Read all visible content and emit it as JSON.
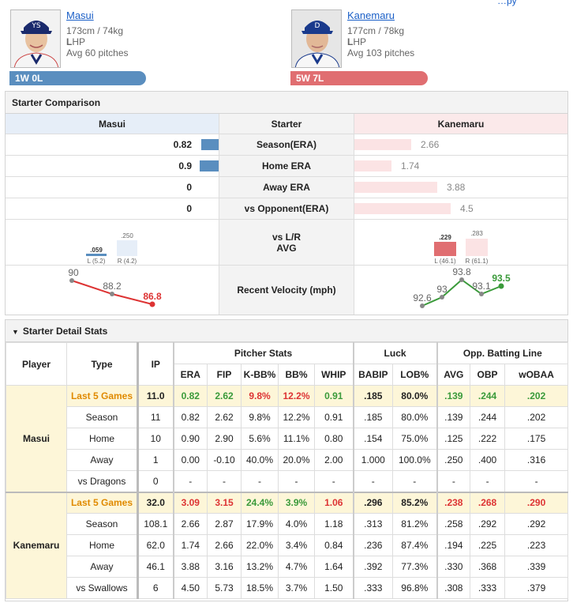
{
  "header": {
    "corner_link": "…py",
    "left": {
      "name": "Masui",
      "height_weight": "173cm / 74kg",
      "hand_letter": "L",
      "hand_rest": "HP",
      "avg_pitches": "Avg 60 pitches",
      "record": "1W 0L"
    },
    "right": {
      "name": "Kanemaru",
      "height_weight": "177cm / 78kg",
      "hand_letter": "L",
      "hand_rest": "HP",
      "avg_pitches": "Avg 103 pitches",
      "record": "5W 7L"
    }
  },
  "comparison": {
    "title": "Starter Comparison",
    "left_header": "Masui",
    "mid_header": "Starter",
    "right_header": "Kanemaru",
    "rows": [
      {
        "label": "Season(ERA)",
        "left": "0.82",
        "right": "2.66",
        "left_value": 0.82,
        "right_value": 2.66
      },
      {
        "label": "Home ERA",
        "left": "0.9",
        "right": "1.74",
        "left_value": 0.9,
        "right_value": 1.74
      },
      {
        "label": "Away ERA",
        "left": "0",
        "right": "3.88",
        "left_value": 0,
        "right_value": 3.88
      },
      {
        "label": "vs Opponent(ERA)",
        "left": "0",
        "right": "4.5",
        "left_value": 0,
        "right_value": 4.5
      }
    ],
    "lr": {
      "label_line1": "vs L/R",
      "label_line2": "AVG",
      "left": {
        "l_avg": ".059",
        "r_avg": ".250",
        "l_ip": "L (5.2)",
        "r_ip": "R (4.2)"
      },
      "right": {
        "l_avg": ".229",
        "r_avg": ".283",
        "l_ip": "L (46.1)",
        "r_ip": "R (61.1)"
      }
    },
    "velocity": {
      "label": "Recent Velocity (mph)",
      "left": [
        "90",
        "88.2",
        "86.8"
      ],
      "right": [
        "92.6",
        "93",
        "93.8",
        "93.1",
        "93.5"
      ]
    }
  },
  "detail": {
    "title": "Starter Detail Stats",
    "headers": {
      "player": "Player",
      "type": "Type",
      "ip": "IP",
      "pitcher_stats": "Pitcher Stats",
      "luck": "Luck",
      "opp": "Opp. Batting Line",
      "cols": [
        "ERA",
        "FIP",
        "K-BB%",
        "BB%",
        "WHIP",
        "BABIP",
        "LOB%",
        "AVG",
        "OBP",
        "wOBAA"
      ]
    },
    "players": [
      {
        "name": "Masui",
        "rows": [
          {
            "type": "Last 5 Games",
            "ip": "11.0",
            "vals": [
              "0.82",
              "2.62",
              "9.8%",
              "12.2%",
              "0.91",
              ".185",
              "80.0%",
              ".139",
              ".244",
              ".202"
            ]
          },
          {
            "type": "Season",
            "ip": "11",
            "vals": [
              "0.82",
              "2.62",
              "9.8%",
              "12.2%",
              "0.91",
              ".185",
              "80.0%",
              ".139",
              ".244",
              ".202"
            ]
          },
          {
            "type": "Home",
            "ip": "10",
            "vals": [
              "0.90",
              "2.90",
              "5.6%",
              "11.1%",
              "0.80",
              ".154",
              "75.0%",
              ".125",
              ".222",
              ".175"
            ]
          },
          {
            "type": "Away",
            "ip": "1",
            "vals": [
              "0.00",
              "-0.10",
              "40.0%",
              "20.0%",
              "2.00",
              "1.000",
              "100.0%",
              ".250",
              ".400",
              ".316"
            ]
          },
          {
            "type": "vs Dragons",
            "ip": "0",
            "vals": [
              "-",
              "-",
              "-",
              "-",
              "-",
              "-",
              "-",
              "-",
              "-",
              "-"
            ]
          }
        ]
      },
      {
        "name": "Kanemaru",
        "rows": [
          {
            "type": "Last 5 Games",
            "ip": "32.0",
            "vals": [
              "3.09",
              "3.15",
              "24.4%",
              "3.9%",
              "1.06",
              ".296",
              "85.2%",
              ".238",
              ".268",
              ".290"
            ]
          },
          {
            "type": "Season",
            "ip": "108.1",
            "vals": [
              "2.66",
              "2.87",
              "17.9%",
              "4.0%",
              "1.18",
              ".313",
              "81.2%",
              ".258",
              ".292",
              ".292"
            ]
          },
          {
            "type": "Home",
            "ip": "62.0",
            "vals": [
              "1.74",
              "2.66",
              "22.0%",
              "3.4%",
              "0.84",
              ".236",
              "87.4%",
              ".194",
              ".225",
              ".223"
            ]
          },
          {
            "type": "Away",
            "ip": "46.1",
            "vals": [
              "3.88",
              "3.16",
              "13.2%",
              "4.7%",
              "1.64",
              ".392",
              "77.3%",
              ".330",
              ".368",
              ".339"
            ]
          },
          {
            "type": "vs Swallows",
            "ip": "6",
            "vals": [
              "4.50",
              "5.73",
              "18.5%",
              "3.7%",
              "1.50",
              ".333",
              "96.8%",
              ".308",
              ".333",
              ".379"
            ]
          }
        ]
      }
    ]
  }
}
